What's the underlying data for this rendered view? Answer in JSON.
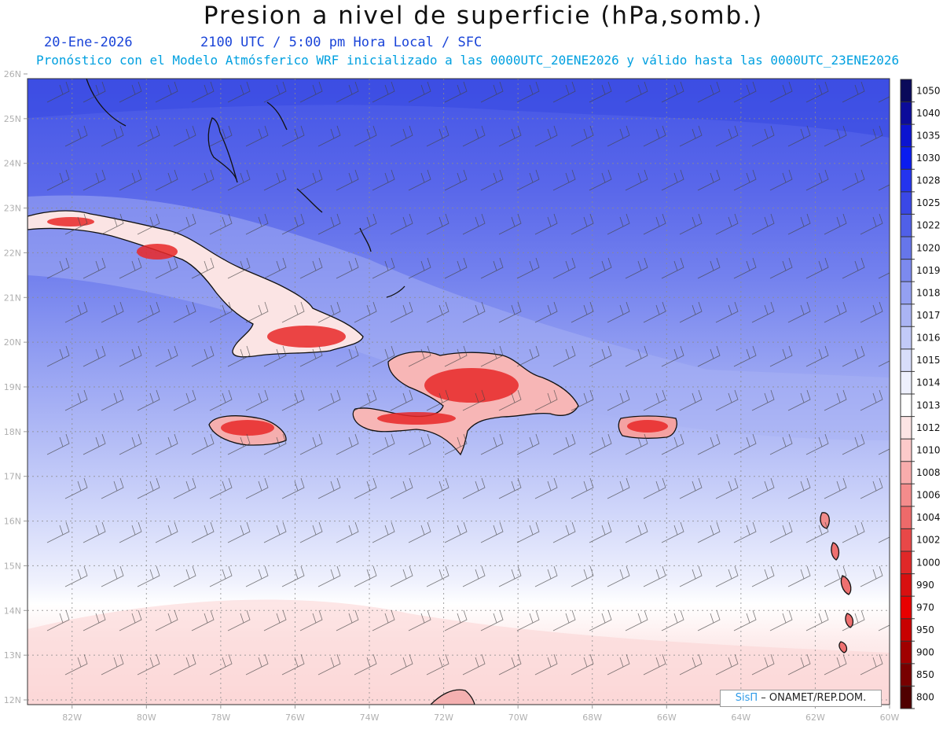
{
  "header": {
    "title": "Presion a nivel de superficie (hPa,somb.)",
    "date": "20-Ene-2026",
    "time": "2100 UTC / 5:00 pm Hora Local / SFC",
    "model_line": "Pronóstico con el Modelo Atmósferico WRF inicializado a las 0000UTC_20ENE2026 y válido hasta las  0000UTC_23ENE2026"
  },
  "map": {
    "lat_labels": [
      "26N",
      "25N",
      "24N",
      "23N",
      "22N",
      "21N",
      "20N",
      "19N",
      "18N",
      "17N",
      "16N",
      "15N",
      "14N",
      "13N",
      "12N"
    ],
    "lon_labels": [
      "82W",
      "80W",
      "78W",
      "76W",
      "74W",
      "72W",
      "70W",
      "68W",
      "66W",
      "64W",
      "62W",
      "60W"
    ],
    "lat_range": [
      12,
      26
    ],
    "lon_range": [
      -83.2,
      -60
    ],
    "regions": [
      "Cuba",
      "Jamaica",
      "Hispaniola",
      "Puerto Rico",
      "Bahamas",
      "Lesser Antilles"
    ]
  },
  "colorbar": {
    "labels": [
      "1050",
      "1040",
      "1035",
      "1030",
      "1028",
      "1025",
      "1022",
      "1020",
      "1019",
      "1018",
      "1017",
      "1016",
      "1015",
      "1014",
      "1013",
      "1012",
      "1010",
      "1008",
      "1006",
      "1004",
      "1002",
      "1000",
      "990",
      "970",
      "950",
      "900",
      "850",
      "800"
    ],
    "colors": [
      "#0a0a5a",
      "#0c0c9a",
      "#0c14d0",
      "#0a1cf0",
      "#2434ee",
      "#3a48e6",
      "#5060e8",
      "#6676ea",
      "#7c8aee",
      "#94a0f2",
      "#aab4f4",
      "#c2caf8",
      "#d8ddfa",
      "#eef0fd",
      "#ffffff",
      "#fde4e4",
      "#fccaca",
      "#f8acac",
      "#f48c8c",
      "#ee6a6a",
      "#e84848",
      "#e02828",
      "#d81010",
      "#e80000",
      "#c80000",
      "#a00000",
      "#780000",
      "#500000"
    ]
  },
  "credit": {
    "brand": "SisΠ",
    "org": "– ONAMET/REP.DOM."
  }
}
